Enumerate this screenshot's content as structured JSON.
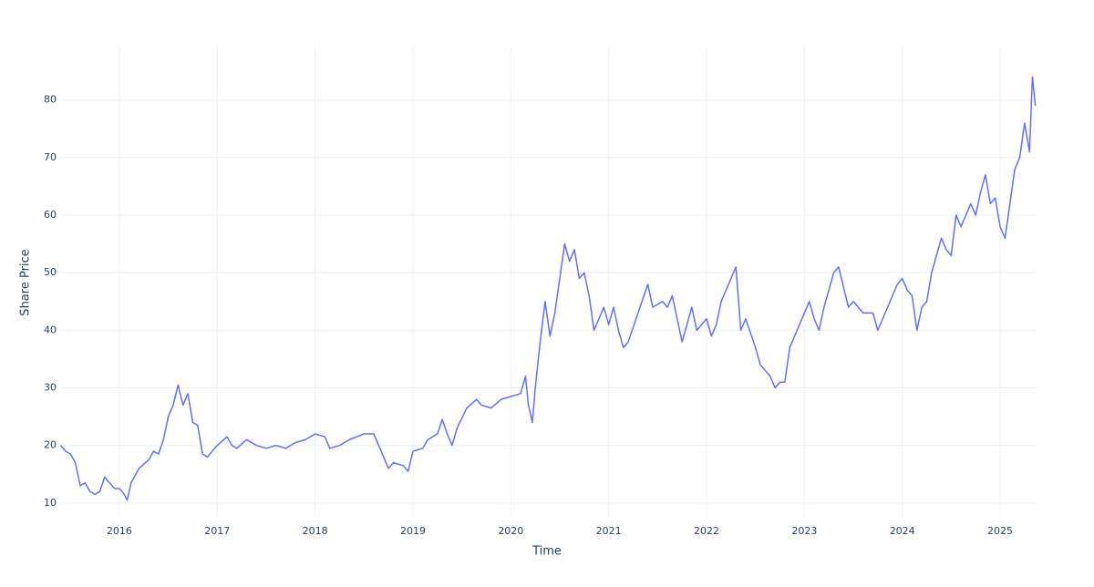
{
  "chart_data": {
    "type": "line",
    "xlabel": "Time",
    "ylabel": "Share Price",
    "x": [
      2015.4,
      2015.45,
      2015.5,
      2015.55,
      2015.6,
      2015.65,
      2015.7,
      2015.75,
      2015.8,
      2015.85,
      2015.9,
      2015.95,
      2016.0,
      2016.05,
      2016.08,
      2016.12,
      2016.2,
      2016.3,
      2016.35,
      2016.4,
      2016.45,
      2016.5,
      2016.55,
      2016.6,
      2016.65,
      2016.7,
      2016.75,
      2016.8,
      2016.85,
      2016.9,
      2016.95,
      2017.0,
      2017.1,
      2017.15,
      2017.2,
      2017.3,
      2017.4,
      2017.5,
      2017.6,
      2017.7,
      2017.8,
      2017.9,
      2018.0,
      2018.1,
      2018.15,
      2018.25,
      2018.35,
      2018.5,
      2018.6,
      2018.7,
      2018.75,
      2018.8,
      2018.9,
      2018.95,
      2019.0,
      2019.1,
      2019.15,
      2019.25,
      2019.3,
      2019.35,
      2019.4,
      2019.45,
      2019.55,
      2019.65,
      2019.7,
      2019.8,
      2019.9,
      2020.0,
      2020.1,
      2020.15,
      2020.18,
      2020.22,
      2020.25,
      2020.3,
      2020.35,
      2020.4,
      2020.45,
      2020.5,
      2020.55,
      2020.6,
      2020.65,
      2020.7,
      2020.75,
      2020.8,
      2020.85,
      2020.9,
      2020.95,
      2021.0,
      2021.05,
      2021.1,
      2021.15,
      2021.2,
      2021.3,
      2021.4,
      2021.45,
      2021.55,
      2021.6,
      2021.65,
      2021.75,
      2021.85,
      2021.9,
      2022.0,
      2022.05,
      2022.1,
      2022.15,
      2022.25,
      2022.3,
      2022.35,
      2022.4,
      2022.5,
      2022.55,
      2022.6,
      2022.65,
      2022.7,
      2022.75,
      2022.8,
      2022.85,
      2022.9,
      2022.95,
      2023.05,
      2023.1,
      2023.15,
      2023.2,
      2023.3,
      2023.35,
      2023.45,
      2023.5,
      2023.6,
      2023.7,
      2023.75,
      2023.85,
      2023.95,
      2024.0,
      2024.05,
      2024.1,
      2024.15,
      2024.2,
      2024.25,
      2024.3,
      2024.4,
      2024.45,
      2024.5,
      2024.55,
      2024.6,
      2024.7,
      2024.75,
      2024.8,
      2024.85,
      2024.9,
      2024.95,
      2025.0,
      2025.05,
      2025.1,
      2025.15,
      2025.2,
      2025.25,
      2025.3,
      2025.33,
      2025.36
    ],
    "series": [
      {
        "color": "#636efa",
        "values": [
          20,
          19,
          18.5,
          17,
          13,
          13.5,
          12,
          11.5,
          12,
          14.5,
          13.5,
          12.5,
          12.5,
          11.5,
          10.5,
          13.5,
          16,
          17.5,
          19,
          18.5,
          21,
          25,
          27,
          30.5,
          27,
          29,
          24,
          23.5,
          18.5,
          18,
          19,
          20,
          21.5,
          20,
          19.5,
          21,
          20,
          19.5,
          20,
          19.5,
          20.5,
          21,
          22,
          21.5,
          19.5,
          20,
          21,
          22,
          22,
          18,
          16,
          17,
          16.5,
          15.5,
          19,
          19.5,
          21,
          22,
          24.5,
          22,
          20,
          23,
          26.5,
          28,
          27,
          26.5,
          28,
          28.5,
          29,
          32,
          27,
          24,
          30,
          38,
          45,
          39,
          43,
          49,
          55,
          52,
          54,
          49,
          50,
          46,
          40,
          42,
          44,
          41,
          44,
          40,
          37,
          38,
          43,
          48,
          44,
          45,
          44,
          46,
          38,
          44,
          40,
          42,
          39,
          41,
          45,
          49,
          51,
          40,
          42,
          37,
          34,
          33,
          32,
          30,
          31,
          31,
          37,
          39,
          41,
          45,
          42,
          40,
          44,
          50,
          51,
          44,
          45,
          43,
          43,
          40,
          44,
          48,
          49,
          47,
          46,
          40,
          44,
          45,
          50,
          56,
          54,
          53,
          60,
          58,
          62,
          60,
          64,
          67,
          62,
          63,
          58,
          56,
          62,
          68,
          70,
          76,
          71,
          84,
          79
        ]
      }
    ],
    "xlim": [
      2015.395,
      2025.363
    ],
    "xticks": [
      2016,
      2017,
      2018,
      2019,
      2020,
      2021,
      2022,
      2023,
      2024,
      2025
    ],
    "ylim": [
      7.6,
      89.3
    ],
    "yticks": [
      10,
      20,
      30,
      40,
      50,
      60,
      70,
      80
    ],
    "grid": true
  }
}
